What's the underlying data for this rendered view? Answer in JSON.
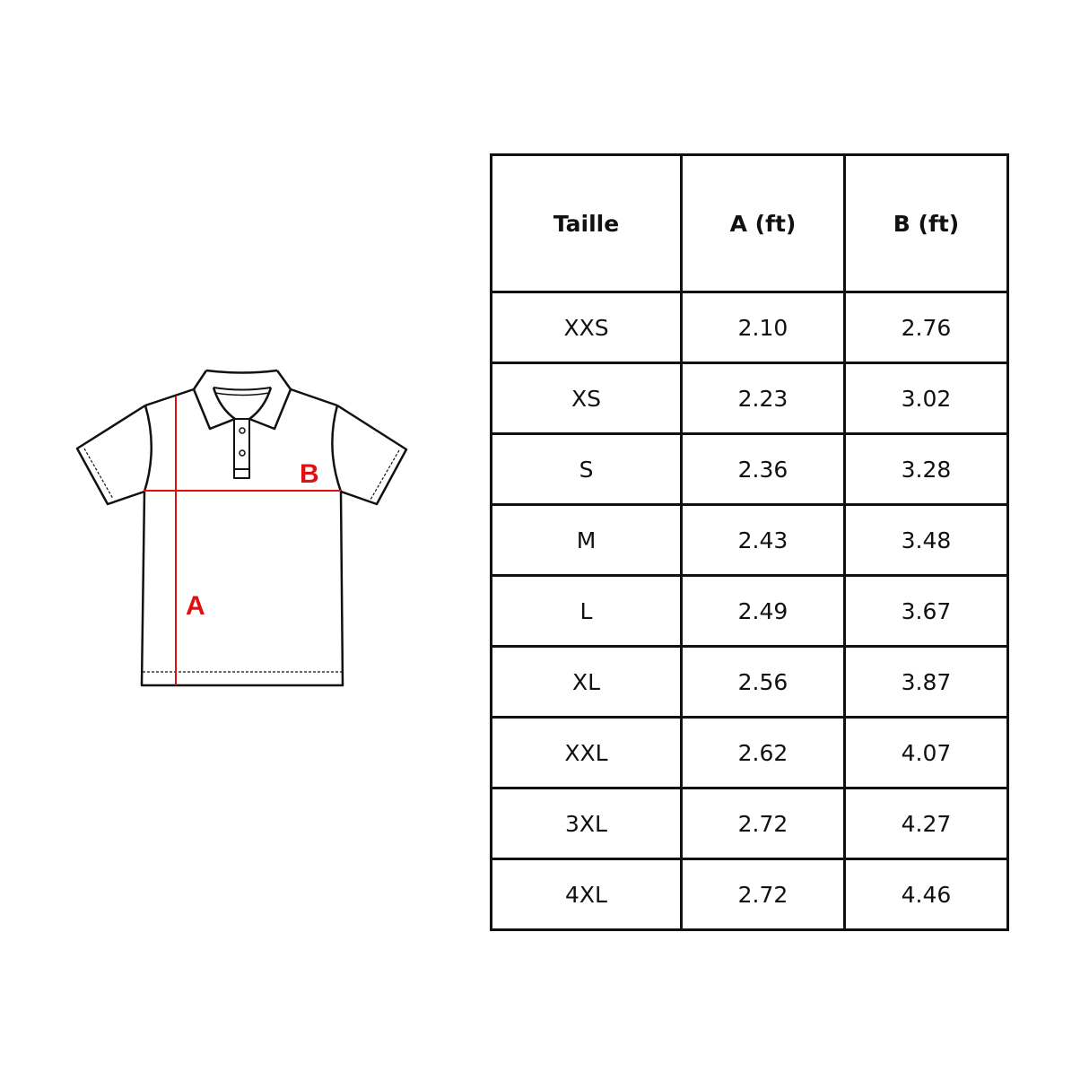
{
  "diagram": {
    "label_a": "A",
    "label_b": "B",
    "measure_color": "#e01010",
    "outline_color": "#111111"
  },
  "size_table": {
    "headers": [
      "Taille",
      "A (ft)",
      "B (ft)"
    ],
    "rows": [
      [
        "XXS",
        "2.10",
        "2.76"
      ],
      [
        "XS",
        "2.23",
        "3.02"
      ],
      [
        "S",
        "2.36",
        "3.28"
      ],
      [
        "M",
        "2.43",
        "3.48"
      ],
      [
        "L",
        "2.49",
        "3.67"
      ],
      [
        "XL",
        "2.56",
        "3.87"
      ],
      [
        "XXL",
        "2.62",
        "4.07"
      ],
      [
        "3XL",
        "2.72",
        "4.27"
      ],
      [
        "4XL",
        "2.72",
        "4.46"
      ]
    ]
  }
}
